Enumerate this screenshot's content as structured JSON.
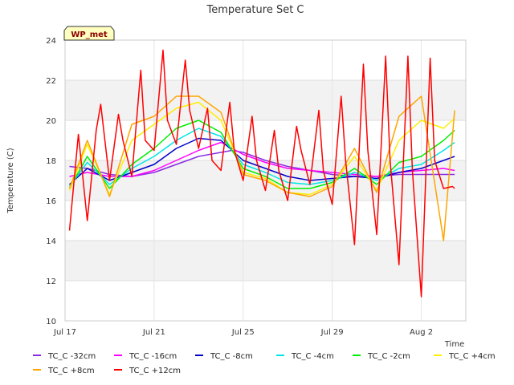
{
  "chart_data": {
    "type": "line",
    "title": "Temperature Set C",
    "xlabel": "Time",
    "ylabel": "Temperature (C)",
    "badge": "WP_met",
    "ylim": [
      10,
      24
    ],
    "xlim": [
      "2023-07-17",
      "2023-08-04"
    ],
    "yticks": [
      10,
      12,
      14,
      16,
      18,
      20,
      22,
      24
    ],
    "xticks": [
      {
        "label": "Jul 17",
        "day": 0
      },
      {
        "label": "Jul 21",
        "day": 4
      },
      {
        "label": "Jul 25",
        "day": 8
      },
      {
        "label": "Jul 29",
        "day": 12
      },
      {
        "label": "Aug 2",
        "day": 16
      }
    ],
    "grid": true,
    "legend_placement": "bottom",
    "series": [
      {
        "name": "TC_C -32cm",
        "color": "#8a2be2",
        "x": [
          0.2,
          1,
          2,
          3,
          4,
          5,
          6,
          7,
          7.5,
          8,
          9,
          10,
          11,
          12,
          13,
          14,
          15,
          16,
          17,
          17.5
        ],
        "y": [
          17.7,
          17.6,
          17.3,
          17.2,
          17.4,
          17.8,
          18.2,
          18.4,
          18.5,
          18.4,
          18.0,
          17.7,
          17.5,
          17.3,
          17.2,
          17.2,
          17.3,
          17.3,
          17.3,
          17.3
        ]
      },
      {
        "name": "TC_C -16cm",
        "color": "#ff00ff",
        "x": [
          0.2,
          1,
          2,
          3,
          4,
          5,
          6,
          7,
          8,
          9,
          10,
          11,
          12,
          13,
          14,
          15,
          16,
          17,
          17.5
        ],
        "y": [
          17.2,
          17.4,
          17.2,
          17.2,
          17.5,
          18.0,
          18.5,
          18.9,
          18.3,
          17.9,
          17.6,
          17.5,
          17.4,
          17.3,
          17.2,
          17.4,
          17.5,
          17.6,
          17.5
        ]
      },
      {
        "name": "TC_C -8cm",
        "color": "#0000cd",
        "x": [
          0.2,
          1,
          2,
          3,
          4,
          5,
          6,
          7,
          8,
          9,
          10,
          11,
          12,
          13,
          14,
          15,
          16,
          17,
          17.5
        ],
        "y": [
          16.8,
          17.6,
          17.0,
          17.4,
          17.8,
          18.6,
          19.1,
          19.0,
          18.0,
          17.6,
          17.2,
          17.0,
          17.1,
          17.2,
          17.1,
          17.4,
          17.6,
          18.0,
          18.2
        ]
      },
      {
        "name": "TC_C -4cm",
        "color": "#00e5e5",
        "x": [
          0.2,
          1,
          2,
          3,
          4,
          5,
          6,
          7,
          8,
          9,
          10,
          11,
          12,
          13,
          14,
          15,
          16,
          17,
          17.5
        ],
        "y": [
          16.7,
          17.9,
          16.8,
          17.6,
          18.2,
          19.0,
          19.6,
          19.2,
          17.8,
          17.4,
          16.9,
          16.8,
          17.0,
          17.4,
          17.0,
          17.6,
          17.8,
          18.5,
          18.9
        ]
      },
      {
        "name": "TC_C -2cm",
        "color": "#00ee00",
        "x": [
          0.2,
          1,
          2,
          3,
          4,
          5,
          6,
          7,
          8,
          9,
          10,
          11,
          12,
          13,
          14,
          15,
          16,
          17,
          17.5
        ],
        "y": [
          16.6,
          18.2,
          16.6,
          17.8,
          18.6,
          19.6,
          20.0,
          19.4,
          17.6,
          17.2,
          16.6,
          16.6,
          16.9,
          17.6,
          16.8,
          17.9,
          18.2,
          19.0,
          19.5
        ]
      },
      {
        "name": "TC_C +4cm",
        "color": "#ffee00",
        "x": [
          0.2,
          1,
          2,
          3,
          4,
          5,
          6,
          7,
          8,
          9,
          10,
          11,
          12,
          13,
          14,
          15,
          16,
          17,
          17.5
        ],
        "y": [
          16.5,
          18.8,
          16.3,
          19.0,
          19.8,
          20.6,
          20.9,
          20.0,
          17.4,
          17.1,
          16.4,
          16.3,
          16.8,
          18.2,
          16.5,
          19.0,
          20.0,
          19.6,
          20.1
        ]
      },
      {
        "name": "TC_C +8cm",
        "color": "#ffa500",
        "x": [
          0.2,
          1,
          2,
          3,
          4,
          5,
          6,
          7,
          8,
          9,
          10,
          11,
          12,
          13,
          14,
          15,
          16,
          17,
          17.5
        ],
        "y": [
          16.6,
          19.0,
          16.2,
          19.8,
          20.2,
          21.2,
          21.2,
          20.4,
          17.3,
          17.0,
          16.4,
          16.2,
          16.7,
          18.6,
          16.4,
          20.2,
          21.2,
          14.0,
          20.5
        ]
      },
      {
        "name": "TC_C +12cm",
        "color": "#ff0000",
        "x": [
          0.2,
          0.6,
          1,
          1.4,
          1.6,
          2,
          2.4,
          2.6,
          3,
          3.4,
          3.6,
          4,
          4.4,
          4.6,
          5,
          5.4,
          5.6,
          6,
          6.4,
          6.6,
          7,
          7.4,
          7.6,
          8,
          8.4,
          8.6,
          9,
          9.4,
          9.6,
          10,
          10.4,
          10.6,
          11,
          11.4,
          11.6,
          12,
          12.4,
          12.6,
          13,
          13.4,
          13.6,
          14,
          14.4,
          14.6,
          15,
          15.4,
          15.6,
          16,
          16.4,
          16.6,
          17,
          17.4,
          17.5
        ],
        "y": [
          14.5,
          19.3,
          15.0,
          19.5,
          20.8,
          17.0,
          20.3,
          19.0,
          17.2,
          22.5,
          19.0,
          18.5,
          23.5,
          20.0,
          18.8,
          23.0,
          20.5,
          18.6,
          20.6,
          18.0,
          17.5,
          20.9,
          18.5,
          17.0,
          20.2,
          18.0,
          16.5,
          19.5,
          17.5,
          16.0,
          19.7,
          18.5,
          16.8,
          20.5,
          17.5,
          15.8,
          21.2,
          18.0,
          13.8,
          22.8,
          18.5,
          14.3,
          23.2,
          18.0,
          12.8,
          23.2,
          17.5,
          11.2,
          23.1,
          18.0,
          16.6,
          16.7,
          16.6
        ]
      }
    ]
  }
}
